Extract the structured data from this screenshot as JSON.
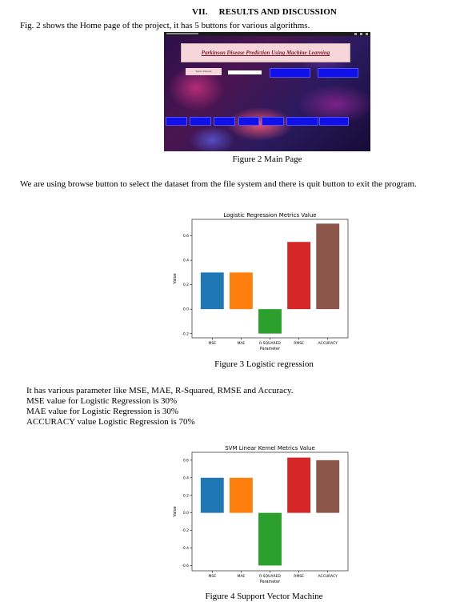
{
  "section": {
    "number": "VII.",
    "title": "RESULTS AND DISCUSSION"
  },
  "intro_text": "Fig. 2 shows the Home page of the project, it has 5 buttons for various algorithms.",
  "figure2": {
    "app_title": "Parkinson Disease Prediction Using Machine Learning",
    "select_dataset_label": "Select Dataset",
    "caption": "Figure 2 Main Page"
  },
  "browse_text": "We are using browse button to select the dataset from the file system and there is quit button to exit the program.",
  "figure3": {
    "caption": "Figure 3 Logistic regression"
  },
  "lr_paragraph": {
    "lines": [
      "It has various parameter like MSE, MAE, R-Squared, RMSE and Accuracy.",
      "MSE value for Logistic Regression is 30%",
      "MAE value for Logistic Regression is 30%",
      "ACCURACY value Logistic Regression is 70%"
    ]
  },
  "figure4": {
    "caption": "Figure 4 Support Vector Machine"
  },
  "chart_data": [
    {
      "type": "bar",
      "title": "Logistic Regression Metrics Value",
      "xlabel": "Parameter",
      "ylabel": "Value",
      "categories": [
        "MSE",
        "MAE",
        "R-SQUARED",
        "RMSE",
        "ACCURACY"
      ],
      "values": [
        0.3,
        0.3,
        -0.2,
        0.55,
        0.7
      ],
      "colors": [
        "#1f77b4",
        "#ff7f0e",
        "#2ca02c",
        "#d62728",
        "#8c564b"
      ],
      "ylim": [
        -0.235,
        0.735
      ],
      "yticks": [
        -0.2,
        0.0,
        0.2,
        0.4,
        0.6
      ],
      "ytick_labels": [
        "-0.2",
        "0.0",
        "0.2",
        "0.4",
        "0.6"
      ],
      "grid": false
    },
    {
      "type": "bar",
      "title": "SVM Linear Kernel Metrics Value",
      "xlabel": "Parameter",
      "ylabel": "Value",
      "categories": [
        "MSE",
        "MAE",
        "R-SQUARED",
        "RMSE",
        "ACCURACY"
      ],
      "values": [
        0.4,
        0.4,
        -0.6,
        0.63,
        0.6
      ],
      "colors": [
        "#1f77b4",
        "#ff7f0e",
        "#2ca02c",
        "#d62728",
        "#8c564b"
      ],
      "ylim": [
        -0.66,
        0.69
      ],
      "yticks": [
        -0.6,
        -0.4,
        -0.2,
        0.0,
        0.2,
        0.4,
        0.6
      ],
      "ytick_labels": [
        "-0.6",
        "-0.4",
        "-0.2",
        "0.0",
        "0.2",
        "0.4",
        "0.6"
      ],
      "grid": false
    }
  ]
}
